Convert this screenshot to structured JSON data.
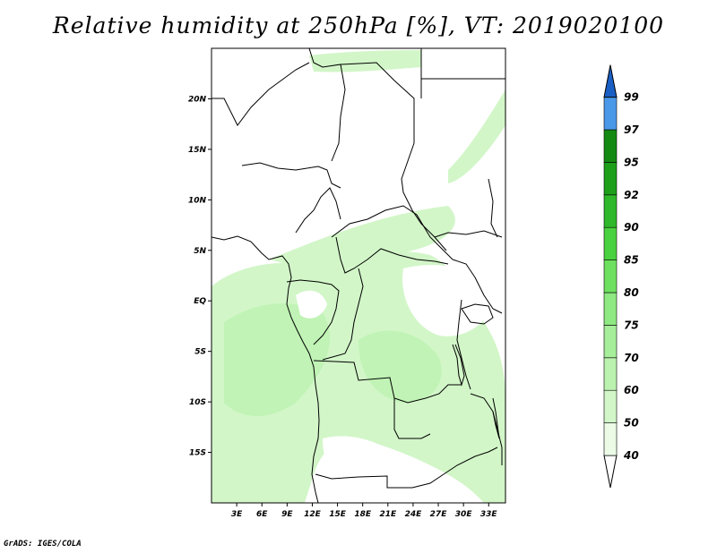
{
  "title": "Relative humidity at 250hPa [%], VT: 2019020100",
  "credit": "GrADS: IGES/COLA",
  "map": {
    "lon_range": [
      0,
      35
    ],
    "lat_range": [
      -20,
      25
    ],
    "lat_ticks": [
      {
        "value": 20,
        "label": "20N"
      },
      {
        "value": 15,
        "label": "15N"
      },
      {
        "value": 10,
        "label": "10N"
      },
      {
        "value": 5,
        "label": "5N"
      },
      {
        "value": 0,
        "label": "EQ"
      },
      {
        "value": -5,
        "label": "5S"
      },
      {
        "value": -10,
        "label": "10S"
      },
      {
        "value": -15,
        "label": "15S"
      }
    ],
    "lon_ticks": [
      {
        "value": 3,
        "label": "3E"
      },
      {
        "value": 6,
        "label": "6E"
      },
      {
        "value": 9,
        "label": "9E"
      },
      {
        "value": 12,
        "label": "12E"
      },
      {
        "value": 15,
        "label": "15E"
      },
      {
        "value": 18,
        "label": "18E"
      },
      {
        "value": 21,
        "label": "21E"
      },
      {
        "value": 24,
        "label": "24E"
      },
      {
        "value": 27,
        "label": "27E"
      },
      {
        "value": 30,
        "label": "30E"
      },
      {
        "value": 33,
        "label": "33E"
      }
    ]
  },
  "colorbar": {
    "levels": [
      {
        "label": "40",
        "color": "#ebfbe6"
      },
      {
        "label": "50",
        "color": "#d2f6c8"
      },
      {
        "label": "60",
        "color": "#bcf2b0"
      },
      {
        "label": "70",
        "color": "#a6ee99"
      },
      {
        "label": "75",
        "color": "#8fe982"
      },
      {
        "label": "80",
        "color": "#6ee05f"
      },
      {
        "label": "85",
        "color": "#4ad23e"
      },
      {
        "label": "90",
        "color": "#2fb82a"
      },
      {
        "label": "92",
        "color": "#1e9f1a"
      },
      {
        "label": "95",
        "color": "#148a12"
      },
      {
        "label": "97",
        "color": "#4a98e8"
      },
      {
        "label": "99",
        "color": "#2472da"
      }
    ],
    "low_color": "#ffffff",
    "high_color": "#1a5fc4"
  }
}
